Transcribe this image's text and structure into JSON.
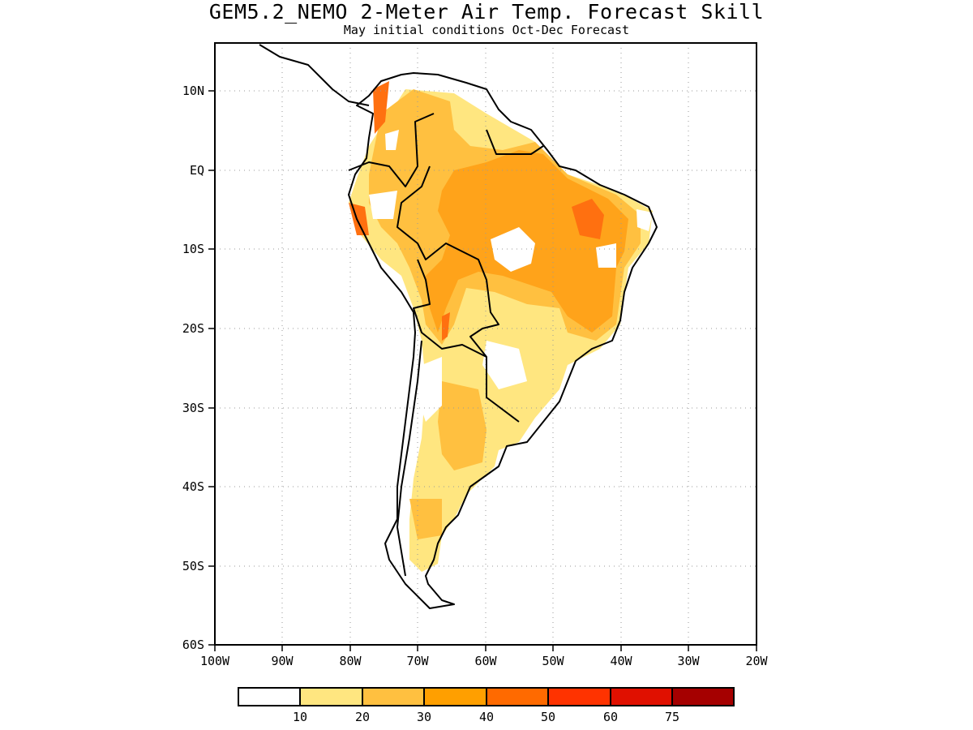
{
  "title": "GEM5.2_NEMO 2-Meter Air Temp. Forecast Skill",
  "subtitle": "May initial conditions  Oct-Dec Forecast",
  "map": {
    "lon_labels": [
      "100W",
      "90W",
      "80W",
      "70W",
      "60W",
      "50W",
      "40W",
      "30W",
      "20W"
    ],
    "lat_labels": [
      "10N",
      "EQ",
      "10S",
      "20S",
      "30S",
      "40S",
      "50S",
      "60S"
    ],
    "lon_range": [
      -100,
      -20
    ],
    "lat_range": [
      -60,
      16
    ],
    "grid": "dotted"
  },
  "legend": {
    "labels": [
      "10",
      "20",
      "30",
      "40",
      "50",
      "60",
      "75"
    ],
    "colors": [
      "#ffffff",
      "#ffe680",
      "#ffc040",
      "#ff9f00",
      "#ff6a00",
      "#ff3300",
      "#e01000",
      "#a50000"
    ]
  }
}
